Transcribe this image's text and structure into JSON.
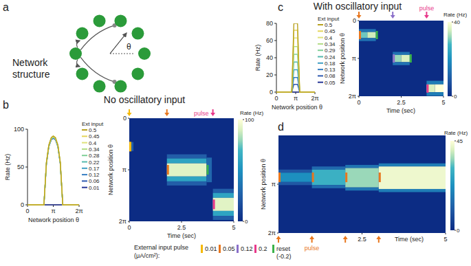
{
  "figure": {
    "letters": [
      "a",
      "b",
      "c",
      "d"
    ],
    "titles": [
      "No oscillatory input",
      "With oscillatory input"
    ],
    "network": {
      "label_lines": [
        "Network",
        "structure"
      ],
      "theta_label": "θ",
      "node_count": 10
    },
    "pulse_legend": {
      "title_lines": [
        "External input pulse",
        "(μA/cm²):"
      ],
      "items": [
        {
          "label": "0.01",
          "color": "#f5b800"
        },
        {
          "label": "0.05",
          "color": "#e8771e"
        },
        {
          "label": "0.12",
          "color": "#8a6fc9"
        },
        {
          "label": "0.2",
          "color": "#e8388a"
        },
        {
          "label": "reset",
          "sublabel": "(-0.2)",
          "color": "#3bb34a"
        }
      ]
    }
  },
  "chart_data": [
    {
      "type": "line",
      "xlabel": "Network position θ",
      "ylabel": "Rate (Hz)",
      "legend_title": "Ext input",
      "x": [
        0,
        2.0,
        2.3,
        2.6,
        2.9,
        3.1416,
        3.4,
        3.7,
        4.0,
        4.3,
        6.2832
      ],
      "xlim": [
        0,
        6.2832
      ],
      "xticks": [
        0,
        {
          "value": 3.1416,
          "label": "π"
        },
        {
          "value": 6.2832,
          "label": "2π"
        }
      ],
      "ylim": [
        0,
        100
      ],
      "yticks": [
        0,
        50,
        100
      ],
      "series": [
        {
          "name": "0.5",
          "color": "#b8a11e",
          "values": [
            0,
            0,
            56,
            79,
            89,
            91,
            89,
            79,
            56,
            0,
            0
          ]
        },
        {
          "name": "0.45",
          "color": "#e5d55a",
          "values": [
            0,
            0,
            56,
            79,
            89,
            91,
            89,
            79,
            56,
            0,
            0
          ]
        },
        {
          "name": "0.4",
          "color": "#dfe27a",
          "values": [
            0,
            0,
            56,
            79,
            88,
            90,
            88,
            79,
            56,
            0,
            0
          ]
        },
        {
          "name": "0.34",
          "color": "#b2dc84",
          "values": [
            0,
            0,
            55,
            78,
            88,
            90,
            88,
            78,
            55,
            0,
            0
          ]
        },
        {
          "name": "0.28",
          "color": "#7fcf97",
          "values": [
            0,
            0,
            55,
            78,
            88,
            90,
            88,
            78,
            55,
            0,
            0
          ]
        },
        {
          "name": "0.22",
          "color": "#55b9ad",
          "values": [
            0,
            0,
            55,
            78,
            87,
            89,
            87,
            78,
            55,
            0,
            0
          ]
        },
        {
          "name": "0.17",
          "color": "#3f9ec4",
          "values": [
            0,
            0,
            55,
            77,
            87,
            89,
            87,
            77,
            55,
            0,
            0
          ]
        },
        {
          "name": "0.12",
          "color": "#367ec2",
          "values": [
            0,
            0,
            54,
            77,
            87,
            89,
            87,
            77,
            54,
            0,
            0
          ]
        },
        {
          "name": "0.06",
          "color": "#2f59b0",
          "values": [
            0,
            0,
            54,
            77,
            86,
            88,
            86,
            77,
            54,
            0,
            0
          ]
        },
        {
          "name": "0.01",
          "color": "#283696",
          "values": [
            0,
            0,
            0,
            0,
            0,
            0,
            0,
            0,
            0,
            0,
            0
          ]
        }
      ]
    },
    {
      "type": "heatmap",
      "xlabel": "Time (sec)",
      "ylabel": "Network position θ",
      "xlim": [
        0,
        5
      ],
      "xticks": [
        0,
        2.5,
        5
      ],
      "ylim": [
        0,
        6.2832
      ],
      "yticks": [
        0,
        {
          "value": 3.1416,
          "label": "π"
        },
        {
          "value": 6.2832,
          "label": "2π"
        }
      ],
      "colorbar": {
        "label": "Rate (Hz)",
        "range": [
          0,
          100
        ],
        "ticks": [
          0,
          100
        ]
      },
      "cells": [
        {
          "t0": 0,
          "t1": 0.2,
          "th0": 1.45,
          "th1": 2.0,
          "rate": 25
        },
        {
          "t0": 1.8,
          "t1": 3.7,
          "th0": 2.2,
          "th1": 2.45,
          "rate": 25
        },
        {
          "t0": 1.8,
          "t1": 3.7,
          "th0": 2.45,
          "th1": 2.75,
          "rate": 60
        },
        {
          "t0": 1.8,
          "t1": 3.7,
          "th0": 2.75,
          "th1": 3.55,
          "rate": 92
        },
        {
          "t0": 1.8,
          "t1": 3.7,
          "th0": 3.55,
          "th1": 3.85,
          "rate": 60
        },
        {
          "t0": 1.8,
          "t1": 3.7,
          "th0": 3.85,
          "th1": 4.1,
          "rate": 25
        },
        {
          "t0": 3.7,
          "t1": 3.95,
          "th0": 2.4,
          "th1": 3.9,
          "rate": 30
        },
        {
          "t0": 4.0,
          "t1": 5,
          "th0": 4.3,
          "th1": 4.55,
          "rate": 25
        },
        {
          "t0": 4.0,
          "t1": 5,
          "th0": 4.55,
          "th1": 4.85,
          "rate": 60
        },
        {
          "t0": 4.0,
          "t1": 5,
          "th0": 4.85,
          "th1": 5.65,
          "rate": 92
        },
        {
          "t0": 4.0,
          "t1": 5,
          "th0": 5.65,
          "th1": 5.95,
          "rate": 60
        },
        {
          "t0": 4.0,
          "t1": 5,
          "th0": 5.95,
          "th1": 6.2,
          "rate": 25
        }
      ],
      "pulses": [
        {
          "time": 0,
          "theta": 1.73,
          "color": "#f5b800"
        },
        {
          "time": 1.8,
          "theta": 3.1416,
          "color": "#e8771e"
        },
        {
          "time": 3.7,
          "theta": 3.1416,
          "color": "#3bb34a"
        },
        {
          "time": 4.0,
          "theta": 5.25,
          "color": "#e8388a"
        }
      ],
      "arrows": [
        {
          "time": 0,
          "color": "#f5b800"
        },
        {
          "time": 1.8,
          "color": "#e8771e"
        },
        {
          "time": 4.0,
          "color": "#e8388a",
          "label": "pulse"
        }
      ]
    },
    {
      "type": "line",
      "xlabel": "Network position θ",
      "ylabel": "Rate (Hz)",
      "legend_title": "Ext input",
      "x": [
        0,
        2.5,
        2.85,
        3.45,
        3.8,
        6.2832
      ],
      "xlim": [
        0,
        6.2832
      ],
      "xticks": [
        0,
        {
          "value": 3.1416,
          "label": "π"
        },
        {
          "value": 6.2832,
          "label": "2π"
        }
      ],
      "ylim": [
        0,
        80
      ],
      "yticks": [
        0,
        20,
        40,
        60,
        80
      ],
      "series": [
        {
          "name": "0.5",
          "color": "#b8a11e",
          "values": [
            0,
            0,
            80,
            80,
            0,
            0
          ]
        },
        {
          "name": "0.45",
          "color": "#e5d55a",
          "values": [
            0,
            0,
            72,
            72,
            0,
            0
          ]
        },
        {
          "name": "0.4",
          "color": "#dfe27a",
          "values": [
            0,
            0,
            63,
            63,
            0,
            0
          ]
        },
        {
          "name": "0.34",
          "color": "#b2dc84",
          "values": [
            0,
            0,
            53,
            53,
            0,
            0
          ]
        },
        {
          "name": "0.29",
          "color": "#7fcf97",
          "values": [
            0,
            0,
            44,
            44,
            0,
            0
          ]
        },
        {
          "name": "0.24",
          "color": "#55b9ad",
          "values": [
            0,
            0,
            35,
            35,
            0,
            0
          ]
        },
        {
          "name": "0.18",
          "color": "#3f9ec4",
          "values": [
            0,
            0,
            26,
            26,
            0,
            0
          ]
        },
        {
          "name": "0.13",
          "color": "#367ec2",
          "values": [
            0,
            0,
            17,
            17,
            0,
            0
          ]
        },
        {
          "name": "0.08",
          "color": "#2f59b0",
          "values": [
            0,
            0,
            9,
            9,
            0,
            0
          ]
        },
        {
          "name": "0.05",
          "color": "#283696",
          "values": [
            0,
            0,
            0,
            0,
            0,
            0
          ]
        }
      ]
    },
    {
      "type": "heatmap",
      "xlabel": "Time (sec)",
      "ylabel": "Network position θ",
      "xlim": [
        0,
        5
      ],
      "xticks": [
        0,
        2.5,
        5
      ],
      "ylim": [
        0,
        6.2832
      ],
      "yticks": [
        0,
        {
          "value": 3.1416,
          "label": "π"
        },
        {
          "value": 6.2832,
          "label": "2π"
        }
      ],
      "colorbar": {
        "label": "Rate (Hz)",
        "range": [
          0,
          40
        ],
        "ticks": [
          0,
          40
        ]
      },
      "cells": [
        {
          "t0": 0,
          "t1": 1,
          "th0": 0.7,
          "th1": 0.95,
          "rate": 14
        },
        {
          "t0": 0,
          "t1": 0.5,
          "th0": 0.95,
          "th1": 1.45,
          "rate": 30
        },
        {
          "t0": 0.5,
          "t1": 1,
          "th0": 0.95,
          "th1": 1.45,
          "rate": 35
        },
        {
          "t0": 0,
          "t1": 1,
          "th0": 1.45,
          "th1": 1.7,
          "rate": 14
        },
        {
          "t0": 2,
          "t1": 3,
          "th0": 2.6,
          "th1": 2.85,
          "rate": 14
        },
        {
          "t0": 2,
          "t1": 2.5,
          "th0": 2.85,
          "th1": 3.45,
          "rate": 32
        },
        {
          "t0": 2.5,
          "t1": 3,
          "th0": 2.85,
          "th1": 3.45,
          "rate": 36
        },
        {
          "t0": 2,
          "t1": 3,
          "th0": 3.45,
          "th1": 3.7,
          "rate": 14
        },
        {
          "t0": 4,
          "t1": 5,
          "th0": 5.0,
          "th1": 5.3,
          "rate": 16
        },
        {
          "t0": 4,
          "t1": 4.5,
          "th0": 5.3,
          "th1": 5.95,
          "rate": 36
        },
        {
          "t0": 4.5,
          "t1": 5,
          "th0": 5.3,
          "th1": 5.95,
          "rate": 40
        },
        {
          "t0": 4,
          "t1": 5,
          "th0": 5.95,
          "th1": 6.25,
          "rate": 16
        }
      ],
      "pulses": [
        {
          "time": 0,
          "theta": 1.2,
          "color": "#e8771e"
        },
        {
          "time": 1.0,
          "theta": 1.2,
          "color": "#3bb34a"
        },
        {
          "time": 2.0,
          "theta": 3.1416,
          "color": "#8a6fc9"
        },
        {
          "time": 3.0,
          "theta": 3.1416,
          "color": "#3bb34a"
        },
        {
          "time": 4.0,
          "theta": 5.65,
          "color": "#e8388a"
        }
      ],
      "arrows": [
        {
          "time": 0,
          "color": "#e8771e"
        },
        {
          "time": 2.0,
          "color": "#8a6fc9"
        },
        {
          "time": 4.0,
          "color": "#e8388a",
          "label": "pulse"
        }
      ]
    },
    {
      "type": "heatmap",
      "xlabel": "Time (sec)",
      "ylabel": "Network position θ",
      "xlim": [
        0,
        5
      ],
      "xticks": [
        2.5,
        5
      ],
      "ylim": [
        0,
        6.2832
      ],
      "yticks": [
        {
          "value": 3.1416,
          "label": "π"
        },
        {
          "value": 6.2832,
          "label": "2π"
        }
      ],
      "colorbar": {
        "label": "Rate (Hz)",
        "range": [
          0,
          45
        ],
        "ticks": [
          0,
          45
        ]
      },
      "cells": [
        {
          "t0": 0,
          "t1": 1,
          "th0": 2.2,
          "th1": 2.4,
          "rate": 10
        },
        {
          "t0": 0,
          "t1": 1,
          "th0": 2.4,
          "th1": 3.0,
          "rate": 22
        },
        {
          "t0": 0,
          "t1": 1,
          "th0": 3.0,
          "th1": 3.2,
          "rate": 10
        },
        {
          "t0": 1,
          "t1": 2,
          "th0": 2.0,
          "th1": 2.2,
          "rate": 14
        },
        {
          "t0": 1,
          "t1": 2,
          "th0": 2.2,
          "th1": 3.2,
          "rate": 30
        },
        {
          "t0": 1,
          "t1": 2,
          "th0": 3.2,
          "th1": 3.4,
          "rate": 14
        },
        {
          "t0": 2,
          "t1": 3,
          "th0": 1.9,
          "th1": 2.1,
          "rate": 16
        },
        {
          "t0": 2,
          "t1": 3,
          "th0": 2.1,
          "th1": 3.35,
          "rate": 36
        },
        {
          "t0": 2,
          "t1": 3,
          "th0": 3.35,
          "th1": 3.55,
          "rate": 16
        },
        {
          "t0": 3,
          "t1": 5,
          "th0": 1.8,
          "th1": 2.0,
          "rate": 18
        },
        {
          "t0": 3,
          "t1": 5,
          "th0": 2.0,
          "th1": 3.45,
          "rate": 43
        },
        {
          "t0": 3,
          "t1": 5,
          "th0": 3.45,
          "th1": 3.65,
          "rate": 18
        }
      ],
      "pulses": [
        {
          "time": 0,
          "theta": 2.7,
          "color": "#e8771e"
        },
        {
          "time": 1,
          "theta": 2.7,
          "color": "#e8771e"
        },
        {
          "time": 2,
          "theta": 2.7,
          "color": "#e8771e"
        },
        {
          "time": 3,
          "theta": 2.7,
          "color": "#e8771e"
        }
      ],
      "arrows": [
        {
          "time": 0,
          "color": "#e8771e"
        },
        {
          "time": 1,
          "color": "#e8771e",
          "label": "pulse"
        },
        {
          "time": 2,
          "color": "#e8771e"
        },
        {
          "time": 3,
          "color": "#e8771e"
        }
      ]
    }
  ]
}
